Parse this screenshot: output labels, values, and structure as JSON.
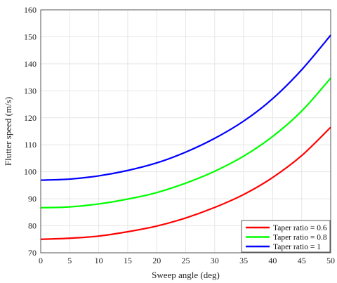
{
  "chart_data": {
    "type": "line",
    "xlabel": "Sweep angle (deg)",
    "ylabel": "Flutter speed (m/s)",
    "xlim": [
      0,
      50
    ],
    "ylim": [
      70,
      160
    ],
    "xticks": [
      0,
      5,
      10,
      15,
      20,
      25,
      30,
      35,
      40,
      45,
      50
    ],
    "yticks": [
      70,
      80,
      90,
      100,
      110,
      120,
      130,
      140,
      150,
      160
    ],
    "grid": true,
    "legend_position": "bottom-right",
    "x": [
      0,
      5,
      10,
      15,
      20,
      25,
      30,
      35,
      40,
      45,
      50
    ],
    "series": [
      {
        "name": "Taper ratio = 0.6",
        "color": "#ff0000",
        "values": [
          75.0,
          75.4,
          76.2,
          77.8,
          79.9,
          82.9,
          86.8,
          91.6,
          97.9,
          106.0,
          116.5
        ]
      },
      {
        "name": "Taper ratio = 0.8",
        "color": "#00ff00",
        "values": [
          86.7,
          87.0,
          88.1,
          89.9,
          92.3,
          95.8,
          100.2,
          105.8,
          113.1,
          122.5,
          134.7
        ]
      },
      {
        "name": "Taper ratio = 1",
        "color": "#0000ff",
        "values": [
          96.9,
          97.3,
          98.5,
          100.5,
          103.3,
          107.3,
          112.4,
          118.8,
          127.1,
          137.8,
          150.6
        ]
      }
    ]
  }
}
